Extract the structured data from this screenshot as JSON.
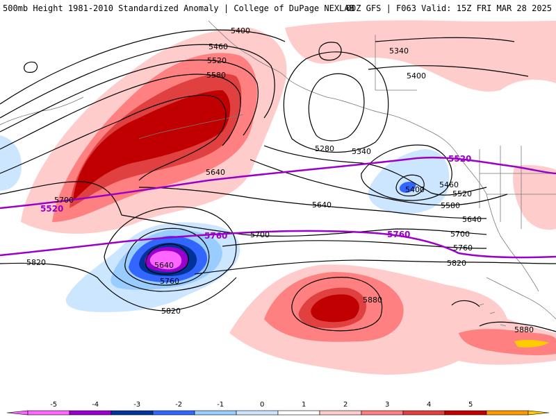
{
  "header": {
    "title_left": "500mb Height 1981-2010 Standardized Anomaly | College of DuPage NEXLAB",
    "title_right": "00Z GFS | F063 Valid: 15Z FRI MAR 28 2025"
  },
  "contour_labels": {
    "h5400_n": "5400",
    "h5460_n": "5460",
    "h5520_n": "5520",
    "h5580_n": "5580",
    "h5340_ne": "5340",
    "h5400_ne": "5400",
    "h5280": "5280",
    "h5340_c": "5340",
    "h5640_w": "5640",
    "h5700_w": "5700",
    "h5640_c": "5640",
    "h5700_c": "5700",
    "h5640_low": "5640",
    "h5760_low": "5760",
    "h5820_w": "5820",
    "h5820_low": "5820",
    "h5400_e": "5400",
    "h5460_e": "5460",
    "h5520_e": "5520",
    "h5580_e": "5580",
    "h5640_e": "5640",
    "h5700_e": "5700",
    "h5760_e": "5760",
    "h5820_e": "5820",
    "h5880_c": "5880",
    "h5880_e": "5880"
  },
  "reference_labels": {
    "p5520_w": "5520",
    "p5520_e": "5520",
    "p5760_c": "5760",
    "p5760_e": "5760"
  },
  "colorbar": {
    "ticks": [
      "-5",
      "-4",
      "-3",
      "-2",
      "-1",
      "0",
      "1",
      "2",
      "3",
      "4",
      "5"
    ],
    "colors": {
      "m5": "#ff66ff",
      "m4": "#9900cc",
      "m3": "#003399",
      "m2": "#3366ff",
      "m1": "#99ccff",
      "m0": "#cce6ff",
      "p0": "#ffffff",
      "p1": "#ffcccc",
      "p2": "#ff8080",
      "p3": "#e04040",
      "p4": "#c00000",
      "p5": "#ff9900",
      "p6": "#ffcc00"
    }
  },
  "colors": {
    "reference_line": "#9a00c8",
    "contour": "#000000"
  }
}
